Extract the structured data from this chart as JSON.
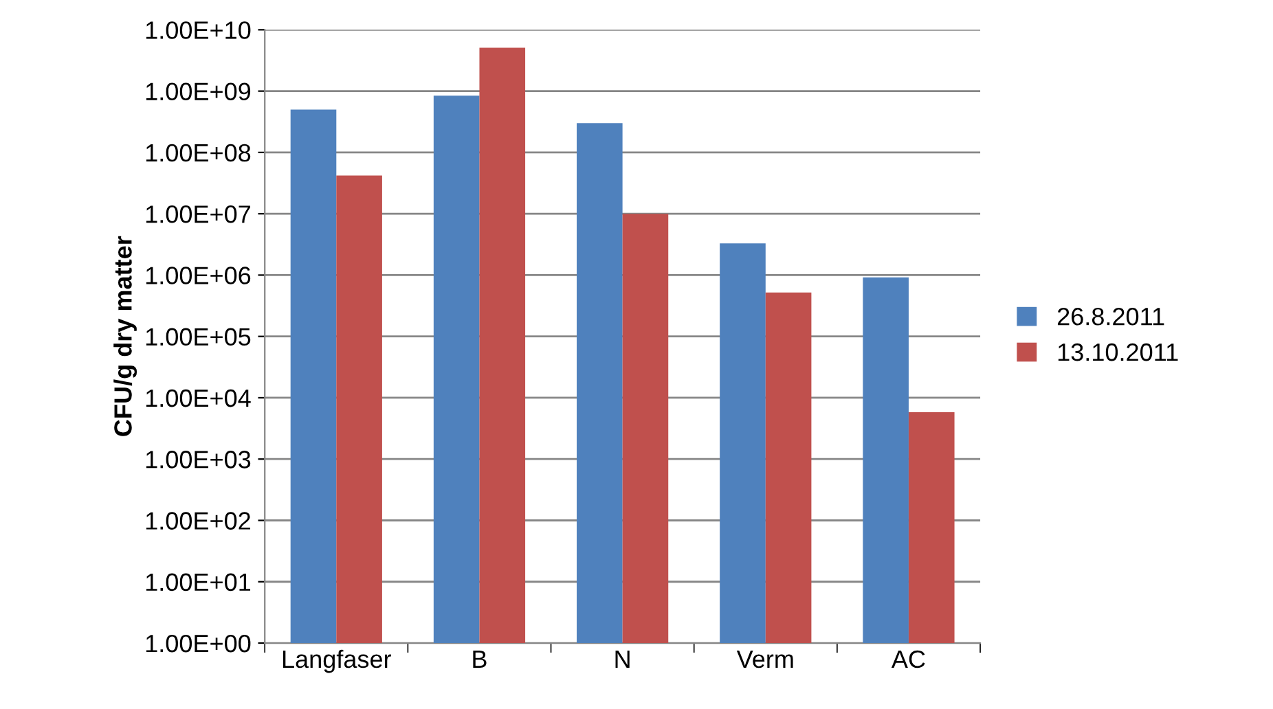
{
  "chart_data": {
    "type": "bar",
    "ylabel": "CFU/g dry matter",
    "categories": [
      "Langfaser",
      "B",
      "N",
      "Verm",
      "AC"
    ],
    "series": [
      {
        "name": "26.8.2011",
        "color": "#4f81bd",
        "values": [
          500000000.0,
          840000000.0,
          300000000.0,
          3300000.0,
          920000.0
        ]
      },
      {
        "name": "13.10.2011",
        "color": "#c0504d",
        "values": [
          42000000.0,
          5100000000.0,
          10000000.0,
          520000.0,
          5800.0
        ]
      }
    ],
    "log": "y",
    "ylim": [
      1,
      10000000000.0
    ],
    "yticks": [
      {
        "value": 1,
        "label": "1.00E+00"
      },
      {
        "value": 10,
        "label": "1.00E+01"
      },
      {
        "value": 100,
        "label": "1.00E+02"
      },
      {
        "value": 1000,
        "label": "1.00E+03"
      },
      {
        "value": 10000,
        "label": "1.00E+04"
      },
      {
        "value": 100000,
        "label": "1.00E+05"
      },
      {
        "value": 1000000,
        "label": "1.00E+06"
      },
      {
        "value": 10000000,
        "label": "1.00E+07"
      },
      {
        "value": 100000000,
        "label": "1.00E+08"
      },
      {
        "value": 1000000000,
        "label": "1.00E+09"
      },
      {
        "value": 10000000000,
        "label": "1.00E+10"
      }
    ],
    "grid": "y",
    "legend": "right"
  }
}
